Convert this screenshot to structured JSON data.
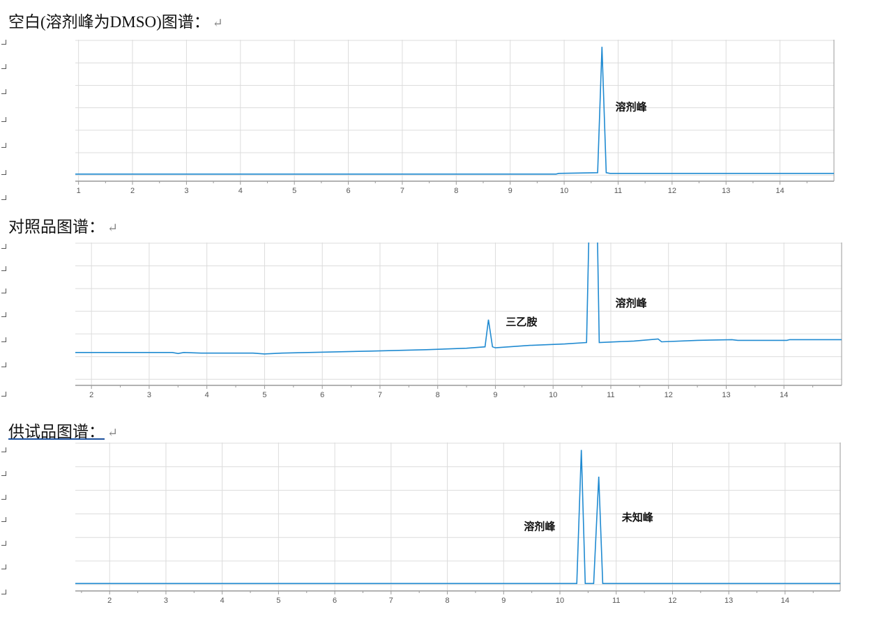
{
  "document": {
    "headings": [
      {
        "text": "空白(溶剂峰为DMSO)图谱：",
        "mark": "↵"
      },
      {
        "text": "对照品图谱：",
        "mark": "↵"
      },
      {
        "text": "供试品图谱：",
        "mark": "↵"
      }
    ]
  },
  "colors": {
    "trace": "#1f8ad1",
    "grid": "#dcdcdc",
    "axis": "#999999"
  },
  "chart_data": [
    {
      "type": "line",
      "title": "",
      "xlabel": "",
      "ylabel": "",
      "xlim": [
        0.94,
        15
      ],
      "ylim": [
        0,
        100
      ],
      "xticks": [
        1,
        2,
        3,
        4,
        5,
        6,
        7,
        8,
        9,
        10,
        11,
        12,
        13,
        14
      ],
      "grid": true,
      "series": [
        {
          "points": [
            [
              0.94,
              5
            ],
            [
              9.85,
              5
            ],
            [
              9.9,
              5.5
            ],
            [
              10.62,
              6
            ],
            [
              10.7,
              95
            ],
            [
              10.78,
              6
            ],
            [
              10.85,
              5.5
            ],
            [
              15,
              5.5
            ]
          ]
        }
      ],
      "annotations": [
        {
          "text": "溶剂峰",
          "x": 10.95,
          "y": 53
        }
      ]
    },
    {
      "type": "line",
      "title": "",
      "xlabel": "",
      "ylabel": "",
      "xlim": [
        1.72,
        15
      ],
      "ylim": [
        0,
        100
      ],
      "xticks": [
        2,
        3,
        4,
        5,
        6,
        7,
        8,
        9,
        10,
        11,
        12,
        13,
        14
      ],
      "grid": true,
      "series": [
        {
          "points": [
            [
              1.72,
              23
            ],
            [
              3.4,
              23
            ],
            [
              3.5,
              22.3
            ],
            [
              3.6,
              23
            ],
            [
              3.9,
              22.6
            ],
            [
              4.8,
              22.6
            ],
            [
              5,
              22
            ],
            [
              5.3,
              22.6
            ],
            [
              6.85,
              24
            ],
            [
              7.8,
              25
            ],
            [
              8.5,
              26
            ],
            [
              8.82,
              27
            ],
            [
              8.88,
              46
            ],
            [
              8.95,
              27
            ],
            [
              9.0,
              26.3
            ],
            [
              9.6,
              28
            ],
            [
              10.2,
              29
            ],
            [
              10.58,
              30
            ],
            [
              10.63,
              125
            ],
            [
              10.76,
              125
            ],
            [
              10.8,
              30
            ],
            [
              11.4,
              31
            ],
            [
              11.82,
              32.5
            ],
            [
              11.88,
              30.5
            ],
            [
              12.5,
              31.5
            ],
            [
              13.1,
              32
            ],
            [
              13.2,
              31.5
            ],
            [
              14.05,
              31.5
            ],
            [
              14.1,
              32
            ],
            [
              15,
              32
            ]
          ]
        }
      ],
      "annotations": [
        {
          "text": "三乙胺",
          "x": 9.18,
          "y": 45
        },
        {
          "text": "溶剂峰",
          "x": 11.08,
          "y": 58
        }
      ]
    },
    {
      "type": "line",
      "title": "",
      "xlabel": "",
      "ylabel": "",
      "xlim": [
        1.39,
        14.98
      ],
      "ylim": [
        0,
        100
      ],
      "xticks": [
        2,
        3,
        4,
        5,
        6,
        7,
        8,
        9,
        10,
        11,
        12,
        13,
        14
      ],
      "grid": true,
      "series": [
        {
          "points": [
            [
              1.39,
              5
            ],
            [
              10.3,
              5
            ],
            [
              10.38,
              95
            ],
            [
              10.45,
              5
            ],
            [
              10.6,
              5
            ],
            [
              10.69,
              77
            ],
            [
              10.76,
              5
            ],
            [
              14.98,
              5
            ]
          ]
        }
      ],
      "annotations": [
        {
          "text": "溶剂峰",
          "x": 9.36,
          "y": 44
        },
        {
          "text": "未知峰",
          "x": 11.1,
          "y": 50
        }
      ]
    }
  ]
}
